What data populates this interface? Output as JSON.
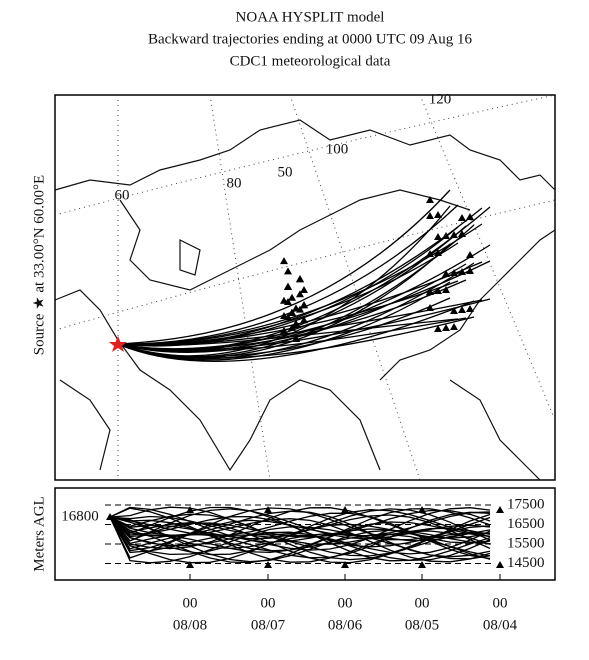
{
  "header": {
    "lines": [
      "NOAA HYSPLIT model",
      "Backward trajectories ending at 0000 UTC 09 Aug 16",
      "CDC1 meteorological data"
    ]
  },
  "map": {
    "source_label": "Source ★ at 33.00°N 60.00°E",
    "grid_labels": [
      "60",
      "80",
      "50",
      "100",
      "120"
    ]
  },
  "height_panel": {
    "y_label": "Meters AGL",
    "start_label": "16800",
    "ticks": [
      "17500",
      "16500",
      "15500",
      "14500"
    ],
    "time_ticks": [
      {
        "hour": "00",
        "date": "08/08"
      },
      {
        "hour": "00",
        "date": "08/07"
      },
      {
        "hour": "00",
        "date": "08/06"
      },
      {
        "hour": "00",
        "date": "08/05"
      },
      {
        "hour": "00",
        "date": "08/04"
      }
    ]
  }
}
